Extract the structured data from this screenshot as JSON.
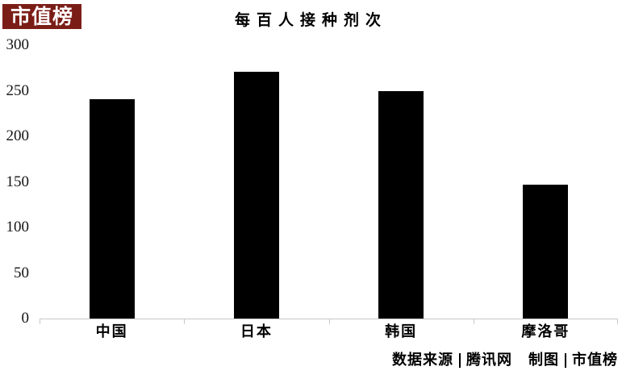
{
  "logo": {
    "text": "市值榜",
    "bg_color": "#7B1D17",
    "text_color": "#FFFFFF"
  },
  "chart_data": {
    "type": "bar",
    "title": "每百人接种剂次",
    "categories": [
      "中国",
      "日本",
      "韩国",
      "摩洛哥"
    ],
    "values": [
      241,
      271,
      250,
      147
    ],
    "xlabel": "",
    "ylabel": "",
    "ylim": [
      0,
      300
    ],
    "yticks": [
      0,
      50,
      100,
      150,
      200,
      250,
      300
    ],
    "bar_color": "#000000",
    "axis_color": "#C8C8C8",
    "grid": false,
    "legend": "none"
  },
  "footer": {
    "source_label": "数据来源",
    "source_value": "腾讯网",
    "credit_label": "制图",
    "credit_value": "市值榜"
  }
}
